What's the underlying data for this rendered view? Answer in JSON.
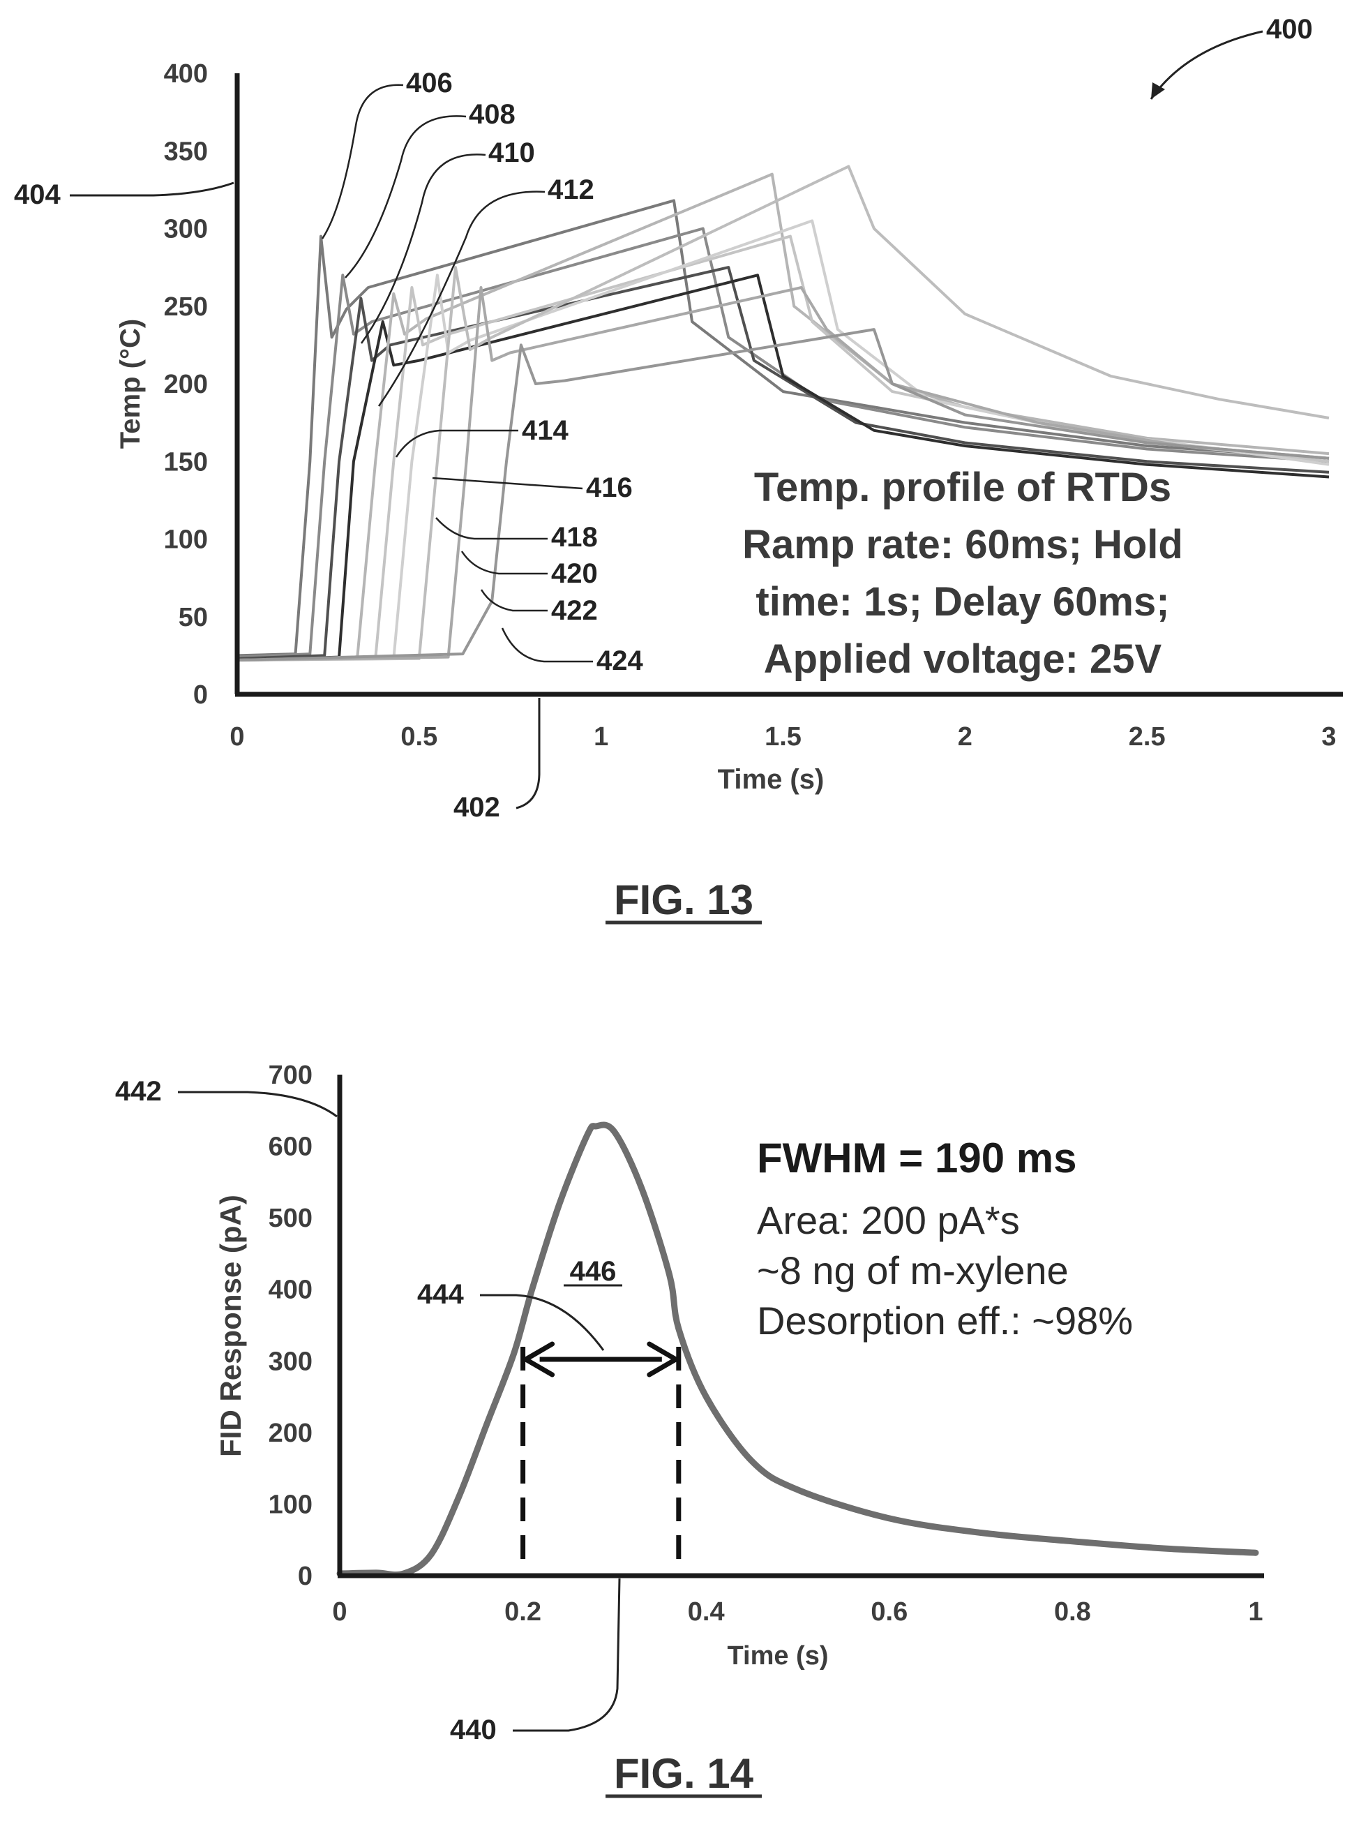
{
  "chart_data": [
    {
      "figure_label": "FIG. 13",
      "figure_ref": "400",
      "type": "line",
      "xlabel": "Time (s)",
      "ylabel": "Temp (°C)",
      "xlim": [
        0,
        3
      ],
      "ylim": [
        0,
        400
      ],
      "xticks": [
        "0",
        "0.5",
        "1",
        "1.5",
        "2",
        "2.5",
        "3"
      ],
      "yticks": [
        "0",
        "50",
        "100",
        "150",
        "200",
        "250",
        "300",
        "350",
        "400"
      ],
      "annotation_lines": [
        "Temp. profile of RTDs",
        "Ramp rate: 60ms; Hold",
        "time: 1s; Delay 60ms;",
        "Applied voltage: 25V"
      ],
      "x_axis_ref": "402",
      "y_axis_ref": "404",
      "series": [
        {
          "ref": "406",
          "color": "#7a7a7a",
          "points": [
            [
              0,
              25
            ],
            [
              0.16,
              26
            ],
            [
              0.2,
              150
            ],
            [
              0.23,
              295
            ],
            [
              0.26,
              230
            ],
            [
              0.3,
              248
            ],
            [
              0.36,
              262
            ],
            [
              1.2,
              318
            ],
            [
              1.25,
              240
            ],
            [
              1.5,
              195
            ],
            [
              2,
              175
            ],
            [
              2.5,
              160
            ],
            [
              3,
              152
            ]
          ]
        },
        {
          "ref": "408",
          "color": "#8a8a8a",
          "points": [
            [
              0,
              24
            ],
            [
              0.2,
              26
            ],
            [
              0.24,
              150
            ],
            [
              0.29,
              270
            ],
            [
              0.32,
              232
            ],
            [
              0.37,
              240
            ],
            [
              1.28,
              300
            ],
            [
              1.35,
              230
            ],
            [
              1.6,
              190
            ],
            [
              2,
              172
            ],
            [
              2.5,
              158
            ],
            [
              3,
              150
            ]
          ]
        },
        {
          "ref": "410",
          "color": "#505050",
          "points": [
            [
              0,
              23
            ],
            [
              0.24,
              25
            ],
            [
              0.28,
              150
            ],
            [
              0.34,
              255
            ],
            [
              0.37,
              215
            ],
            [
              0.42,
              225
            ],
            [
              1.35,
              275
            ],
            [
              1.42,
              215
            ],
            [
              1.7,
              175
            ],
            [
              2,
              162
            ],
            [
              2.5,
              150
            ],
            [
              3,
              143
            ]
          ]
        },
        {
          "ref": "412",
          "color": "#2e2e2e",
          "points": [
            [
              0,
              22
            ],
            [
              0.28,
              24
            ],
            [
              0.32,
              150
            ],
            [
              0.4,
              240
            ],
            [
              0.43,
              212
            ],
            [
              0.5,
              215
            ],
            [
              1.43,
              270
            ],
            [
              1.5,
              205
            ],
            [
              1.75,
              170
            ],
            [
              2,
              160
            ],
            [
              2.5,
              148
            ],
            [
              3,
              140
            ]
          ]
        },
        {
          "ref": "414",
          "color": "#b5b5b5",
          "points": [
            [
              0,
              22
            ],
            [
              0.33,
              23
            ],
            [
              0.38,
              150
            ],
            [
              0.43,
              258
            ],
            [
              0.46,
              232
            ],
            [
              0.52,
              242
            ],
            [
              1.47,
              335
            ],
            [
              1.53,
              250
            ],
            [
              1.8,
              200
            ],
            [
              2,
              185
            ],
            [
              2.5,
              165
            ],
            [
              3,
              155
            ]
          ]
        },
        {
          "ref": "416",
          "color": "#c4c4c4",
          "points": [
            [
              0,
              22
            ],
            [
              0.38,
              23
            ],
            [
              0.43,
              150
            ],
            [
              0.48,
              262
            ],
            [
              0.51,
              225
            ],
            [
              0.58,
              232
            ],
            [
              1.52,
              295
            ],
            [
              1.58,
              240
            ],
            [
              1.8,
              195
            ],
            [
              2.2,
              175
            ],
            [
              2.6,
              160
            ],
            [
              3,
              150
            ]
          ]
        },
        {
          "ref": "418",
          "color": "#cfcfcf",
          "points": [
            [
              0,
              22
            ],
            [
              0.43,
              23
            ],
            [
              0.48,
              150
            ],
            [
              0.55,
              270
            ],
            [
              0.58,
              220
            ],
            [
              0.64,
              228
            ],
            [
              1.58,
              305
            ],
            [
              1.65,
              235
            ],
            [
              1.9,
              190
            ],
            [
              2.3,
              170
            ],
            [
              2.7,
              158
            ],
            [
              3,
              148
            ]
          ]
        },
        {
          "ref": "420",
          "color": "#bdbdbd",
          "points": [
            [
              0,
              22
            ],
            [
              0.5,
              23
            ],
            [
              0.55,
              150
            ],
            [
              0.6,
              275
            ],
            [
              0.64,
              222
            ],
            [
              0.7,
              230
            ],
            [
              1.68,
              340
            ],
            [
              1.75,
              300
            ],
            [
              2,
              245
            ],
            [
              2.4,
              205
            ],
            [
              2.7,
              190
            ],
            [
              3,
              178
            ]
          ]
        },
        {
          "ref": "422",
          "color": "#a8a8a8",
          "points": [
            [
              0,
              22
            ],
            [
              0.58,
              24
            ],
            [
              0.63,
              150
            ],
            [
              0.67,
              262
            ],
            [
              0.7,
              215
            ],
            [
              0.75,
              220
            ],
            [
              1.55,
              262
            ],
            [
              1.62,
              235
            ],
            [
              1.8,
              200
            ],
            [
              2.2,
              175
            ],
            [
              2.6,
              160
            ],
            [
              3,
              152
            ]
          ]
        },
        {
          "ref": "424",
          "color": "#969696",
          "points": [
            [
              0,
              22
            ],
            [
              0.62,
              26
            ],
            [
              0.7,
              60
            ],
            [
              0.74,
              150
            ],
            [
              0.78,
              225
            ],
            [
              0.82,
              200
            ],
            [
              0.9,
              202
            ],
            [
              1.75,
              235
            ],
            [
              1.8,
              200
            ],
            [
              2,
              180
            ],
            [
              2.5,
              162
            ],
            [
              3,
              152
            ]
          ]
        }
      ]
    },
    {
      "figure_label": "FIG. 14",
      "type": "line",
      "xlabel": "Time (s)",
      "ylabel": "FID Response (pA)",
      "xlim": [
        0,
        1
      ],
      "ylim": [
        0,
        700
      ],
      "xticks": [
        "0",
        "0.2",
        "0.4",
        "0.6",
        "0.8",
        "1"
      ],
      "yticks": [
        "0",
        "100",
        "200",
        "300",
        "400",
        "500",
        "600",
        "700"
      ],
      "annotation_title": "FWHM = 190 ms",
      "annotation_lines": [
        "Area: 200 pA*s",
        "~8 ng of m-xylene",
        "Desorption eff.: ~98%"
      ],
      "x_axis_ref": "440",
      "y_axis_ref": "442",
      "fwhm_ref": "444",
      "peak_ref": "446",
      "fwhm_markers": [
        0.2,
        0.37
      ],
      "fwhm_level": 310,
      "series": [
        {
          "ref": "440",
          "color": "#6e6e6e",
          "points": [
            [
              0,
              3
            ],
            [
              0.04,
              4
            ],
            [
              0.07,
              3
            ],
            [
              0.1,
              30
            ],
            [
              0.13,
              110
            ],
            [
              0.16,
              210
            ],
            [
              0.19,
              310
            ],
            [
              0.21,
              400
            ],
            [
              0.24,
              520
            ],
            [
              0.27,
              615
            ],
            [
              0.28,
              628
            ],
            [
              0.3,
              620
            ],
            [
              0.33,
              540
            ],
            [
              0.36,
              420
            ],
            [
              0.37,
              345
            ],
            [
              0.4,
              250
            ],
            [
              0.45,
              160
            ],
            [
              0.5,
              120
            ],
            [
              0.6,
              80
            ],
            [
              0.7,
              60
            ],
            [
              0.8,
              48
            ],
            [
              0.9,
              38
            ],
            [
              1.0,
              32
            ]
          ]
        }
      ]
    }
  ]
}
